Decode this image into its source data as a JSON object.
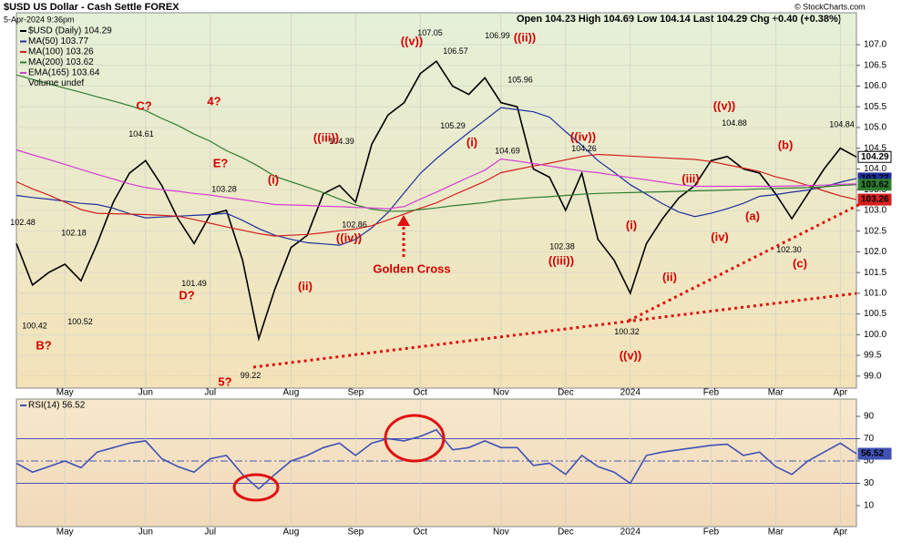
{
  "chart_data": [
    {
      "type": "line",
      "title": "$USD US Dollar - Cash Settle FOREX",
      "subtitle": "5-Apr-2024 9:36pm",
      "quote": "Open 104.23 High 104.69 Low 104.14 Last 104.29 Chg +0.40 (+0.38%)",
      "source": "© StockCharts.com",
      "categories": [
        null,
        null,
        null,
        "May",
        null,
        null,
        null,
        null,
        "Jun",
        null,
        null,
        null,
        "Jul",
        null,
        null,
        null,
        null,
        "Aug",
        null,
        null,
        null,
        "Sep",
        null,
        null,
        null,
        "Oct",
        null,
        null,
        null,
        null,
        "Nov",
        null,
        null,
        null,
        "Dec",
        null,
        null,
        null,
        "2024",
        null,
        null,
        null,
        null,
        "Feb",
        null,
        null,
        null,
        "Mar",
        null,
        null,
        null,
        "Apr",
        null
      ],
      "series": [
        {
          "name": "$USD (Daily) 104.29",
          "color": "#000000",
          "end_label": "104.29",
          "values": [
            102.2,
            101.2,
            101.5,
            101.7,
            101.3,
            102.2,
            103.2,
            103.9,
            104.2,
            103.6,
            102.8,
            102.2,
            102.9,
            103.0,
            101.8,
            99.9,
            101.1,
            102.1,
            102.4,
            103.4,
            103.6,
            103.2,
            104.6,
            105.3,
            105.6,
            106.3,
            106.6,
            106.0,
            105.8,
            106.2,
            105.6,
            105.5,
            104.0,
            103.8,
            103.0,
            103.9,
            102.3,
            101.8,
            101.0,
            102.2,
            102.8,
            103.3,
            103.6,
            104.2,
            104.3,
            104.0,
            103.9,
            103.4,
            102.8,
            103.4,
            104.0,
            104.5,
            104.29
          ]
        },
        {
          "name": "MA(50) 103.77",
          "color": "#1f2f9e",
          "end_label": "103.77",
          "values": [
            103.36,
            103.31,
            103.27,
            103.22,
            103.17,
            103.14,
            103.05,
            102.92,
            102.82,
            102.84,
            102.86,
            102.88,
            102.9,
            102.93,
            102.76,
            102.56,
            102.4,
            102.3,
            102.22,
            102.19,
            102.16,
            102.3,
            102.58,
            102.95,
            103.42,
            103.89,
            104.25,
            104.57,
            104.88,
            105.18,
            105.48,
            105.43,
            105.38,
            105.25,
            104.9,
            104.57,
            104.2,
            103.92,
            103.62,
            103.39,
            103.16,
            102.96,
            102.85,
            102.93,
            103.04,
            103.17,
            103.34,
            103.38,
            103.44,
            103.49,
            103.57,
            103.68,
            103.77
          ]
        },
        {
          "name": "MA(100) 103.26",
          "color": "#d42020",
          "end_label": "103.26",
          "values": [
            103.69,
            103.52,
            103.37,
            103.2,
            103.02,
            102.93,
            102.92,
            102.91,
            102.9,
            102.88,
            102.86,
            102.78,
            102.69,
            102.6,
            102.52,
            102.44,
            102.38,
            102.4,
            102.42,
            102.46,
            102.51,
            102.55,
            102.63,
            102.77,
            102.91,
            103.05,
            103.18,
            103.36,
            103.53,
            103.7,
            103.91,
            103.99,
            104.07,
            104.14,
            104.22,
            104.3,
            104.35,
            104.33,
            104.31,
            104.29,
            104.27,
            104.25,
            104.23,
            104.18,
            104.1,
            104.02,
            103.94,
            103.81,
            103.72,
            103.6,
            103.47,
            103.35,
            103.26
          ]
        },
        {
          "name": "MA(200) 103.62",
          "color": "#2e7d32",
          "end_label": "103.62",
          "values": [
            106.27,
            106.16,
            106.06,
            105.95,
            105.85,
            105.74,
            105.64,
            105.53,
            105.41,
            105.22,
            105.05,
            104.84,
            104.67,
            104.44,
            104.27,
            104.06,
            103.82,
            103.69,
            103.56,
            103.43,
            103.27,
            103.13,
            103.03,
            102.98,
            102.98,
            103.02,
            103.06,
            103.11,
            103.15,
            103.19,
            103.25,
            103.28,
            103.31,
            103.33,
            103.36,
            103.39,
            103.41,
            103.42,
            103.43,
            103.44,
            103.45,
            103.46,
            103.47,
            103.48,
            103.49,
            103.5,
            103.52,
            103.53,
            103.54,
            103.55,
            103.57,
            103.6,
            103.62
          ]
        },
        {
          "name": "EMA(165) 103.64",
          "color": "#d63cd6",
          "values": [
            104.46,
            104.34,
            104.23,
            104.11,
            103.99,
            103.87,
            103.76,
            103.64,
            103.55,
            103.5,
            103.46,
            103.41,
            103.37,
            103.31,
            103.26,
            103.2,
            103.14,
            103.13,
            103.12,
            103.1,
            103.09,
            103.07,
            103.06,
            103.04,
            103.09,
            103.27,
            103.44,
            103.62,
            103.8,
            103.97,
            104.24,
            104.19,
            104.13,
            104.07,
            104.01,
            103.95,
            103.91,
            103.85,
            103.79,
            103.74,
            103.68,
            103.62,
            103.58,
            103.58,
            103.58,
            103.58,
            103.58,
            103.58,
            103.59,
            103.6,
            103.61,
            103.63,
            103.64
          ]
        }
      ],
      "legend_extra": "Volume undef",
      "ylim": [
        98.71,
        107.77
      ],
      "yticks": [
        {
          "value": 99,
          "label": "99.0"
        },
        99.5,
        {
          "value": 100,
          "label": "100.0"
        },
        100.5,
        {
          "value": 101,
          "label": "101.0"
        },
        101.5,
        {
          "value": 102,
          "label": "102.0"
        },
        102.5,
        {
          "value": 103,
          "label": "103.0"
        },
        103.5,
        {
          "value": 104,
          "label": "104.0"
        },
        104.5,
        {
          "value": 105,
          "label": "105.0"
        },
        105.5,
        {
          "value": 106,
          "label": "106.0"
        },
        106.5,
        {
          "value": 107,
          "label": "107.0"
        }
      ],
      "grid": true,
      "price_labels": [
        102.48,
        100.42,
        102.18,
        100.52,
        104.61,
        101.49,
        103.28,
        99.22,
        102.86,
        104.39,
        107.05,
        106.57,
        105.29,
        106.99,
        105.96,
        104.69,
        104.26,
        102.38,
        100.32,
        104.88,
        {
          "value": 102.3,
          "label": "102.30"
        },
        104.84
      ],
      "annotations": [
        "B?",
        "C?",
        "4?",
        "E?",
        "D?",
        "5?",
        "(i)",
        "((iii))",
        "(ii)",
        "((iv))",
        "((v))",
        "(i)",
        "((ii))",
        "((iv))",
        "((iii))",
        "(i)",
        "(ii)",
        "((v))",
        "(iii)",
        "(iv)",
        "((v))",
        "(a)",
        "(b)",
        "(c)",
        "Golden Cross"
      ]
    },
    {
      "type": "line",
      "categories": [
        null,
        null,
        null,
        "May",
        null,
        null,
        null,
        null,
        "Jun",
        null,
        null,
        null,
        "Jul",
        null,
        null,
        null,
        null,
        "Aug",
        null,
        null,
        null,
        "Sep",
        null,
        null,
        null,
        "Oct",
        null,
        null,
        null,
        null,
        "Nov",
        null,
        null,
        null,
        "Dec",
        null,
        null,
        null,
        "2024",
        null,
        null,
        null,
        null,
        "Feb",
        null,
        null,
        null,
        "Mar",
        null,
        null,
        null,
        "Apr",
        null
      ],
      "series": [
        {
          "name": "RSI(14) 56.52",
          "color": "#3f51b5",
          "end_label": "56.52",
          "values": [
            48,
            40,
            45,
            50,
            44,
            58,
            62,
            66,
            68,
            52,
            45,
            40,
            52,
            55,
            38,
            25,
            38,
            50,
            55,
            62,
            66,
            55,
            66,
            70,
            68,
            72,
            78,
            60,
            62,
            68,
            62,
            62,
            46,
            48,
            38,
            55,
            45,
            40,
            30,
            55,
            58,
            60,
            62,
            64,
            65,
            55,
            58,
            45,
            38,
            50,
            58,
            66,
            56.52
          ]
        }
      ],
      "ylim": [
        -8.78,
        105.5
      ],
      "yticks": [
        10,
        30,
        50,
        70,
        90
      ],
      "reference_lines": [
        70,
        50,
        30
      ]
    }
  ]
}
